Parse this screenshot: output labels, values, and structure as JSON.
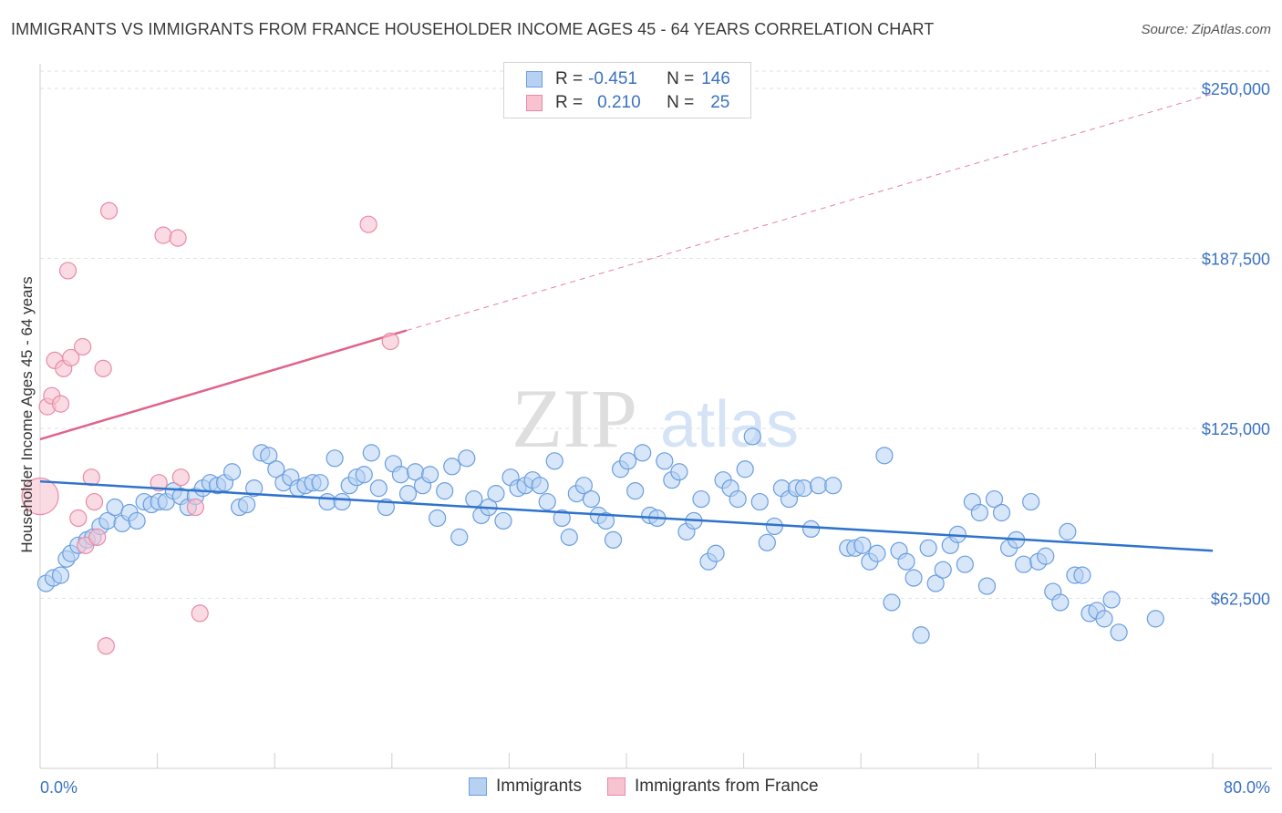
{
  "header": {
    "title": "IMMIGRANTS VS IMMIGRANTS FROM FRANCE HOUSEHOLDER INCOME AGES 45 - 64 YEARS CORRELATION CHART",
    "source": "Source: ZipAtlas.com"
  },
  "watermark": {
    "zip": "ZIP",
    "atlas": "atlas"
  },
  "legend": {
    "rows": [
      {
        "r_label": "R =",
        "r_value": "-0.451",
        "n_label": "N =",
        "n_value": "146"
      },
      {
        "r_label": "R =",
        "r_value": "0.210",
        "n_label": "N =",
        "n_value": "25"
      }
    ]
  },
  "colors": {
    "blue_fill": "#b7d1f3",
    "blue_stroke": "#6a9ee0",
    "blue_line": "#2e73cc",
    "pink_fill": "#f7c3d1",
    "pink_stroke": "#e98aa6",
    "pink_line": "#e0648a",
    "axis_text": "#3a72c2",
    "grid": "#e2e2e2"
  },
  "chart_data": {
    "type": "scatter",
    "title": "IMMIGRANTS VS IMMIGRANTS FROM FRANCE HOUSEHOLDER INCOME AGES 45 - 64 YEARS CORRELATION CHART",
    "xlabel": "",
    "ylabel": "Householder Income Ages 45 - 64 years",
    "xlim": [
      0,
      80
    ],
    "ylim": [
      0,
      262500
    ],
    "x_tick_labels": [
      "0.0%",
      "80.0%"
    ],
    "y_ticks": [
      62500,
      125000,
      187500,
      250000
    ],
    "y_tick_labels": [
      "$62,500",
      "$125,000",
      "$187,500",
      "$250,000"
    ],
    "grid": true,
    "legend_position": "bottom",
    "series": [
      {
        "name": "Immigrants",
        "color": "#6a9ee0",
        "trend": {
          "x": [
            0,
            80
          ],
          "y": [
            105500,
            80000
          ],
          "style": "solid"
        },
        "points": [
          [
            0.4,
            68000
          ],
          [
            0.9,
            70000
          ],
          [
            1.4,
            71000
          ],
          [
            1.8,
            77000
          ],
          [
            2.1,
            79000
          ],
          [
            2.6,
            82000
          ],
          [
            3.2,
            84000
          ],
          [
            3.6,
            85000
          ],
          [
            4.1,
            89000
          ],
          [
            4.6,
            91000
          ],
          [
            5.1,
            96000
          ],
          [
            5.6,
            90000
          ],
          [
            6.1,
            94000
          ],
          [
            6.6,
            91000
          ],
          [
            7.1,
            98000
          ],
          [
            7.6,
            97000
          ],
          [
            8.1,
            98000
          ],
          [
            8.6,
            98000
          ],
          [
            9.1,
            102000
          ],
          [
            9.6,
            100000
          ],
          [
            10.1,
            96000
          ],
          [
            10.6,
            100000
          ],
          [
            11.1,
            103000
          ],
          [
            11.6,
            105000
          ],
          [
            12.1,
            104000
          ],
          [
            12.6,
            105000
          ],
          [
            13.1,
            109000
          ],
          [
            13.6,
            96000
          ],
          [
            14.1,
            97000
          ],
          [
            14.6,
            103000
          ],
          [
            15.1,
            116000
          ],
          [
            15.6,
            115000
          ],
          [
            16.1,
            110000
          ],
          [
            16.6,
            105000
          ],
          [
            17.1,
            107000
          ],
          [
            17.6,
            103000
          ],
          [
            18.1,
            104000
          ],
          [
            18.6,
            105000
          ],
          [
            19.1,
            105000
          ],
          [
            19.6,
            98000
          ],
          [
            20.1,
            114000
          ],
          [
            20.6,
            98000
          ],
          [
            21.1,
            104000
          ],
          [
            21.6,
            107000
          ],
          [
            22.1,
            108000
          ],
          [
            22.6,
            116000
          ],
          [
            23.1,
            103000
          ],
          [
            23.6,
            96000
          ],
          [
            24.1,
            112000
          ],
          [
            24.6,
            108000
          ],
          [
            25.1,
            101000
          ],
          [
            25.6,
            109000
          ],
          [
            26.1,
            104000
          ],
          [
            26.6,
            108000
          ],
          [
            27.1,
            92000
          ],
          [
            27.6,
            102000
          ],
          [
            28.1,
            111000
          ],
          [
            28.6,
            85000
          ],
          [
            29.1,
            114000
          ],
          [
            29.6,
            99000
          ],
          [
            30.1,
            93000
          ],
          [
            30.6,
            96000
          ],
          [
            31.1,
            101000
          ],
          [
            31.6,
            91000
          ],
          [
            32.1,
            107000
          ],
          [
            32.6,
            103000
          ],
          [
            33.1,
            104000
          ],
          [
            33.6,
            106000
          ],
          [
            34.1,
            104000
          ],
          [
            34.6,
            98000
          ],
          [
            35.1,
            113000
          ],
          [
            35.6,
            92000
          ],
          [
            36.1,
            85000
          ],
          [
            36.6,
            101000
          ],
          [
            37.1,
            104000
          ],
          [
            37.6,
            99000
          ],
          [
            38.1,
            93000
          ],
          [
            38.6,
            91000
          ],
          [
            39.1,
            84000
          ],
          [
            39.6,
            110000
          ],
          [
            40.1,
            113000
          ],
          [
            40.6,
            102000
          ],
          [
            41.1,
            116000
          ],
          [
            41.6,
            93000
          ],
          [
            42.1,
            92000
          ],
          [
            42.6,
            113000
          ],
          [
            43.1,
            106000
          ],
          [
            43.6,
            109000
          ],
          [
            44.1,
            87000
          ],
          [
            44.6,
            91000
          ],
          [
            45.1,
            99000
          ],
          [
            45.6,
            76000
          ],
          [
            46.1,
            79000
          ],
          [
            46.6,
            106000
          ],
          [
            47.1,
            103000
          ],
          [
            47.6,
            99000
          ],
          [
            48.1,
            110000
          ],
          [
            48.6,
            122000
          ],
          [
            49.1,
            98000
          ],
          [
            49.6,
            83000
          ],
          [
            50.1,
            89000
          ],
          [
            50.6,
            103000
          ],
          [
            51.1,
            99000
          ],
          [
            51.6,
            103000
          ],
          [
            52.1,
            103000
          ],
          [
            52.6,
            88000
          ],
          [
            53.1,
            104000
          ],
          [
            54.1,
            104000
          ],
          [
            55.1,
            81000
          ],
          [
            55.6,
            81000
          ],
          [
            56.1,
            82000
          ],
          [
            56.6,
            76000
          ],
          [
            57.1,
            79000
          ],
          [
            57.6,
            115000
          ],
          [
            58.1,
            61000
          ],
          [
            58.6,
            80000
          ],
          [
            59.1,
            76000
          ],
          [
            59.6,
            70000
          ],
          [
            60.1,
            49000
          ],
          [
            60.6,
            81000
          ],
          [
            61.1,
            68000
          ],
          [
            61.6,
            73000
          ],
          [
            62.1,
            82000
          ],
          [
            62.6,
            86000
          ],
          [
            63.1,
            75000
          ],
          [
            63.6,
            98000
          ],
          [
            64.1,
            94000
          ],
          [
            64.6,
            67000
          ],
          [
            65.1,
            99000
          ],
          [
            65.6,
            94000
          ],
          [
            66.1,
            81000
          ],
          [
            66.6,
            84000
          ],
          [
            67.1,
            75000
          ],
          [
            67.6,
            98000
          ],
          [
            68.1,
            76000
          ],
          [
            68.6,
            78000
          ],
          [
            69.1,
            65000
          ],
          [
            69.6,
            61000
          ],
          [
            70.1,
            87000
          ],
          [
            70.6,
            71000
          ],
          [
            71.1,
            71000
          ],
          [
            71.6,
            57000
          ],
          [
            72.1,
            58000
          ],
          [
            72.6,
            55000
          ],
          [
            73.1,
            62000
          ],
          [
            73.6,
            50000
          ],
          [
            76.1,
            55000
          ]
        ]
      },
      {
        "name": "Immigrants from France",
        "color": "#e98aa6",
        "trend": {
          "x": [
            0,
            25,
            80
          ],
          "y": [
            121000,
            161000,
            248000
          ],
          "style": "solid-then-dashed"
        },
        "points": [
          [
            0.0,
            100000
          ],
          [
            0.5,
            133000
          ],
          [
            0.8,
            137000
          ],
          [
            1.0,
            150000
          ],
          [
            1.4,
            134000
          ],
          [
            1.6,
            147000
          ],
          [
            1.9,
            183000
          ],
          [
            2.1,
            151000
          ],
          [
            2.6,
            92000
          ],
          [
            2.9,
            155000
          ],
          [
            3.1,
            82000
          ],
          [
            3.5,
            107000
          ],
          [
            3.7,
            98000
          ],
          [
            3.9,
            85000
          ],
          [
            4.3,
            147000
          ],
          [
            4.5,
            45000
          ],
          [
            4.7,
            205000
          ],
          [
            8.1,
            105000
          ],
          [
            8.4,
            196000
          ],
          [
            9.4,
            195000
          ],
          [
            9.6,
            107000
          ],
          [
            10.6,
            96000
          ],
          [
            10.9,
            57000
          ],
          [
            22.4,
            200000
          ],
          [
            23.9,
            157000
          ]
        ]
      }
    ]
  },
  "axes": {
    "y_label": "Householder Income Ages 45 - 64 years",
    "x_left_label": "0.0%",
    "x_right_label": "80.0%"
  },
  "bottom_legend": {
    "items": [
      {
        "label": "Immigrants"
      },
      {
        "label": "Immigrants from France"
      }
    ]
  }
}
